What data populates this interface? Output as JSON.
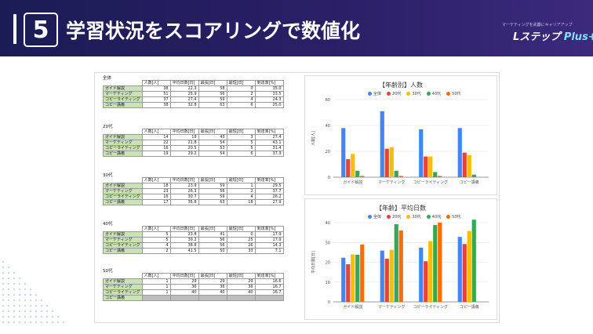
{
  "header": {
    "number": "5",
    "title": "学習状況をスコアリングで数値化",
    "logo_sub": "マーケティングを武器にキャリアアップ",
    "logo_main": "Lステップ",
    "logo_plus": "Plus+"
  },
  "table_headers": [
    "人数[人]",
    "平均日数[日]",
    "最長[日]",
    "最短[日]",
    "到達率[%]"
  ],
  "groups": [
    {
      "title": "全体",
      "rows": [
        [
          "ガイド解説",
          "38",
          "22.3",
          "58",
          "0",
          "35.0"
        ],
        [
          "マーケティング",
          "51",
          "25.9",
          "56",
          "2",
          "33.5"
        ],
        [
          "コピーライティング",
          "37",
          "27.4",
          "59",
          "4",
          "24.3"
        ],
        [
          "コピー講義",
          "38",
          "32.8",
          "63",
          "6",
          "25.0"
        ]
      ]
    },
    {
      "title": "20代",
      "rows": [
        [
          "ガイド解説",
          "14",
          "19",
          "43",
          "3",
          "27.4"
        ],
        [
          "マーケティング",
          "22",
          "21.8",
          "54",
          "5",
          "43.1"
        ],
        [
          "コピーライティング",
          "16",
          "20.5",
          "53",
          "5",
          "31.4"
        ],
        [
          "コピー講義",
          "19",
          "29.2",
          "54",
          "6",
          "37.3"
        ]
      ]
    },
    {
      "title": "30代",
      "rows": [
        [
          "ガイド解説",
          "18",
          "23.9",
          "59",
          "1",
          "29.5"
        ],
        [
          "マーケティング",
          "23",
          "26.3",
          "56",
          "2",
          "37.7"
        ],
        [
          "コピーライティング",
          "16",
          "30.7",
          "59",
          "4",
          "26.2"
        ],
        [
          "コピー講義",
          "17",
          "35.8",
          "63",
          "18",
          "27.9"
        ]
      ]
    },
    {
      "title": "40代",
      "rows": [
        [
          "ガイド解説",
          "5",
          "23.8",
          "41",
          "0",
          "17.9"
        ],
        [
          "マーケティング",
          "5",
          "39.2",
          "56",
          "25",
          "17.9"
        ],
        [
          "コピーライティング",
          "4",
          "38.8",
          "56",
          "26",
          "14.3"
        ],
        [
          "コピー講義",
          "2",
          "41.5",
          "50",
          "33",
          "7.1"
        ]
      ]
    },
    {
      "title": "50代",
      "rows": [
        [
          "ガイド解説",
          "1",
          "29",
          "29",
          "29",
          "16.6"
        ],
        [
          "マーケティング",
          "1",
          "36",
          "36",
          "36",
          "16.7"
        ],
        [
          "コピーライティング",
          "1",
          "40",
          "40",
          "40",
          "16.7"
        ],
        [
          "コピー講義",
          "",
          "",
          "",
          "",
          ""
        ]
      ]
    }
  ],
  "chart_data": [
    {
      "type": "bar",
      "title": "【年齢別】人数",
      "ylabel": "人数[人]",
      "xlabel": "",
      "ylim": [
        0,
        60
      ],
      "yticks": [
        0,
        20,
        40,
        60
      ],
      "categories": [
        "ガイド解説",
        "マーケティング",
        "コピーライティング",
        "コピー講義"
      ],
      "legend_position": "top",
      "series": [
        {
          "name": "全体",
          "color": "#4285f4",
          "values": [
            38,
            51,
            37,
            38
          ]
        },
        {
          "name": "20代",
          "color": "#ea4335",
          "values": [
            14,
            22,
            16,
            19
          ]
        },
        {
          "name": "30代",
          "color": "#fbbc04",
          "values": [
            18,
            23,
            16,
            17
          ]
        },
        {
          "name": "40代",
          "color": "#34a853",
          "values": [
            5,
            5,
            4,
            2
          ]
        },
        {
          "name": "50代",
          "color": "#ff6d01",
          "values": [
            1,
            1,
            1,
            0
          ]
        }
      ]
    },
    {
      "type": "bar",
      "title": "【年齢】平均日数",
      "ylabel": "平均日数[日]",
      "xlabel": "",
      "ylim": [
        0,
        40
      ],
      "yticks": [
        0,
        10,
        20,
        30,
        40
      ],
      "categories": [
        "ガイド解説",
        "マーケティング",
        "コピーライティング",
        "コピー講義"
      ],
      "legend_position": "top",
      "series": [
        {
          "name": "全体",
          "color": "#4285f4",
          "values": [
            22.3,
            25.9,
            27.4,
            32.8
          ]
        },
        {
          "name": "20代",
          "color": "#ea4335",
          "values": [
            19,
            21.8,
            20.5,
            29.2
          ]
        },
        {
          "name": "30代",
          "color": "#fbbc04",
          "values": [
            23.9,
            26.3,
            30.7,
            35.8
          ]
        },
        {
          "name": "40代",
          "color": "#34a853",
          "values": [
            23.8,
            39.2,
            38.8,
            41.5
          ]
        },
        {
          "name": "50代",
          "color": "#ff6d01",
          "values": [
            29,
            36,
            40,
            0
          ]
        }
      ]
    }
  ]
}
